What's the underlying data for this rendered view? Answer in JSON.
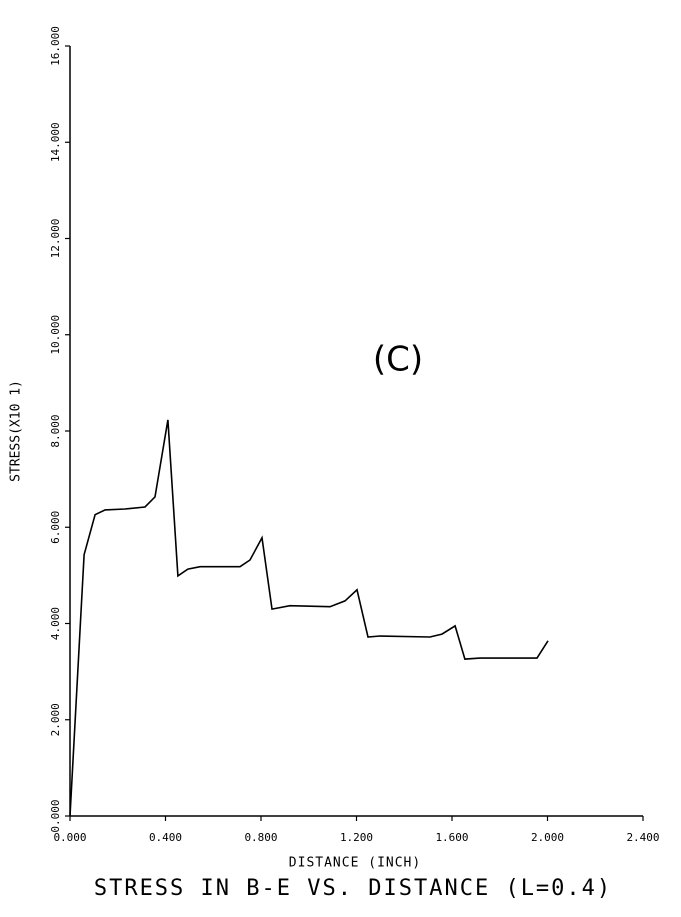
{
  "chart_data": {
    "type": "line",
    "title": "STRESS IN B-E VS. DISTANCE (L=0.4)",
    "annotation": "(C)",
    "x_label": "DISTANCE (INCH)",
    "y_label": "STRESS(X10 1)",
    "color": "#000000",
    "x": [
      0,
      0.059,
      0.105,
      0.147,
      0.23,
      0.314,
      0.356,
      0.41,
      0.452,
      0.494,
      0.545,
      0.712,
      0.754,
      0.804,
      0.846,
      0.921,
      1.089,
      1.152,
      1.202,
      1.248,
      1.298,
      1.508,
      1.558,
      1.613,
      1.654,
      1.717,
      1.956,
      2.002
    ],
    "values": [
      0,
      5.43,
      6.26,
      6.36,
      6.38,
      6.42,
      6.63,
      8.23,
      4.99,
      5.13,
      5.18,
      5.18,
      5.32,
      5.78,
      4.3,
      4.37,
      4.35,
      4.47,
      4.7,
      3.72,
      3.74,
      3.72,
      3.78,
      3.95,
      3.26,
      3.28,
      3.28,
      3.64
    ],
    "xlim": [
      0,
      2.4
    ],
    "xticks": [
      {
        "value": 0,
        "label": "0.000"
      },
      {
        "value": 0.4,
        "label": "0.400"
      },
      {
        "value": 0.8,
        "label": "0.800"
      },
      {
        "value": 1.2,
        "label": "1.200"
      },
      {
        "value": 1.6,
        "label": "1.600"
      },
      {
        "value": 2.0,
        "label": "2.000"
      },
      {
        "value": 2.4,
        "label": "2.400"
      }
    ],
    "ylim": [
      0,
      16
    ],
    "yticks": [
      {
        "value": 0,
        "label": "0.000"
      },
      {
        "value": 2,
        "label": "2.000"
      },
      {
        "value": 4,
        "label": "4.000"
      },
      {
        "value": 6,
        "label": "6.000"
      },
      {
        "value": 8,
        "label": "8.000"
      },
      {
        "value": 10,
        "label": "10.000"
      },
      {
        "value": 12,
        "label": "12.000"
      },
      {
        "value": 14,
        "label": "14.000"
      },
      {
        "value": 16,
        "label": "16.000"
      }
    ]
  }
}
